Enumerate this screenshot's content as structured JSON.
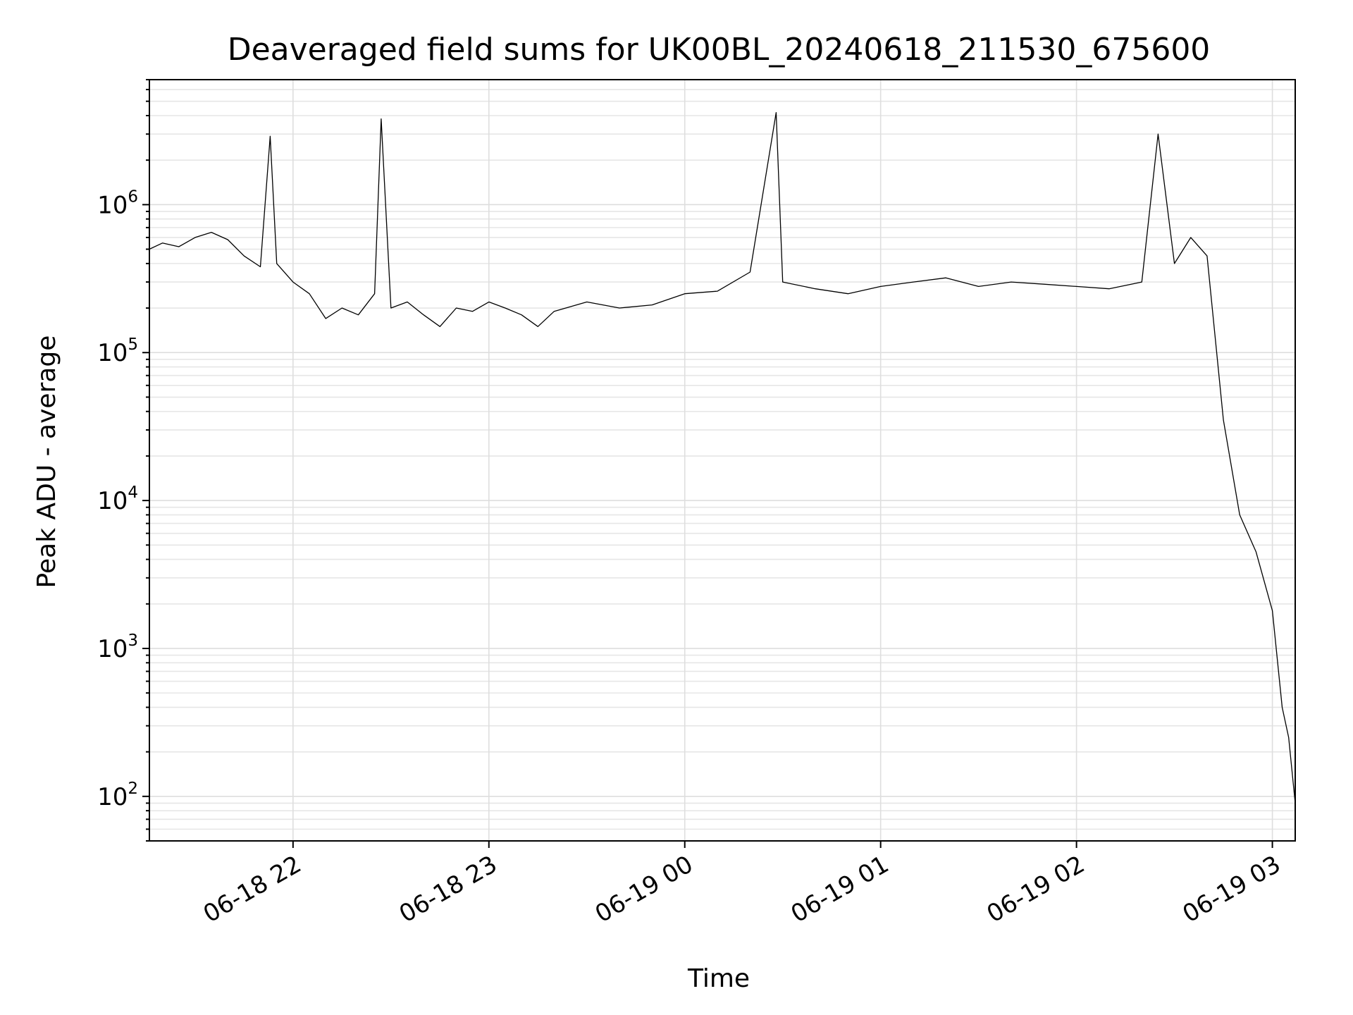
{
  "chart_data": {
    "type": "line",
    "title": "Deaveraged field sums for UK00BL_20240618_211530_675600",
    "xlabel": "Time",
    "ylabel": "Peak ADU - average",
    "yscale": "log",
    "grid": true,
    "xlim": [
      "2024-06-18 21:16",
      "2024-06-19 03:07"
    ],
    "ylim": [
      50,
      7000000
    ],
    "x_ticks": [
      {
        "at": "2024-06-18 22:00",
        "label": "06-18 22"
      },
      {
        "at": "2024-06-18 23:00",
        "label": "06-18 23"
      },
      {
        "at": "2024-06-19 00:00",
        "label": "06-19 00"
      },
      {
        "at": "2024-06-19 01:00",
        "label": "06-19 01"
      },
      {
        "at": "2024-06-19 02:00",
        "label": "06-19 02"
      },
      {
        "at": "2024-06-19 03:00",
        "label": "06-19 03"
      }
    ],
    "y_ticks": [
      {
        "value": 100,
        "base": "10",
        "exp": "2"
      },
      {
        "value": 1000,
        "base": "10",
        "exp": "3"
      },
      {
        "value": 10000,
        "base": "10",
        "exp": "4"
      },
      {
        "value": 100000,
        "base": "10",
        "exp": "5"
      },
      {
        "value": 1000000,
        "base": "10",
        "exp": "6"
      }
    ],
    "line_color": "#000000",
    "series": [
      {
        "x": [
          "2024-06-18 21:16",
          "2024-06-18 21:20",
          "2024-06-18 21:25",
          "2024-06-18 21:30",
          "2024-06-18 21:35",
          "2024-06-18 21:40",
          "2024-06-18 21:45",
          "2024-06-18 21:50",
          "2024-06-18 21:53",
          "2024-06-18 21:55",
          "2024-06-18 22:00",
          "2024-06-18 22:05",
          "2024-06-18 22:10",
          "2024-06-18 22:15",
          "2024-06-18 22:20",
          "2024-06-18 22:25",
          "2024-06-18 22:27",
          "2024-06-18 22:30",
          "2024-06-18 22:35",
          "2024-06-18 22:40",
          "2024-06-18 22:45",
          "2024-06-18 22:50",
          "2024-06-18 22:55",
          "2024-06-18 23:00",
          "2024-06-18 23:05",
          "2024-06-18 23:10",
          "2024-06-18 23:15",
          "2024-06-18 23:20",
          "2024-06-18 23:30",
          "2024-06-18 23:40",
          "2024-06-18 23:50",
          "2024-06-19 00:00",
          "2024-06-19 00:10",
          "2024-06-19 00:20",
          "2024-06-19 00:28",
          "2024-06-19 00:30",
          "2024-06-19 00:40",
          "2024-06-19 00:50",
          "2024-06-19 01:00",
          "2024-06-19 01:10",
          "2024-06-19 01:20",
          "2024-06-19 01:30",
          "2024-06-19 01:40",
          "2024-06-19 01:50",
          "2024-06-19 02:00",
          "2024-06-19 02:10",
          "2024-06-19 02:20",
          "2024-06-19 02:25",
          "2024-06-19 02:30",
          "2024-06-19 02:35",
          "2024-06-19 02:40",
          "2024-06-19 02:45",
          "2024-06-19 02:50",
          "2024-06-19 02:55",
          "2024-06-19 03:00",
          "2024-06-19 03:03",
          "2024-06-19 03:05",
          "2024-06-19 03:07"
        ],
        "y": [
          500000,
          550000,
          520000,
          600000,
          650000,
          580000,
          450000,
          380000,
          2900000,
          400000,
          300000,
          250000,
          170000,
          200000,
          180000,
          250000,
          3800000,
          200000,
          220000,
          180000,
          150000,
          200000,
          190000,
          220000,
          200000,
          180000,
          150000,
          190000,
          220000,
          200000,
          210000,
          250000,
          260000,
          350000,
          4200000,
          300000,
          270000,
          250000,
          280000,
          300000,
          320000,
          280000,
          300000,
          290000,
          280000,
          270000,
          300000,
          3000000,
          400000,
          600000,
          450000,
          35000,
          8000,
          4500,
          1800,
          400,
          250,
          90
        ]
      }
    ]
  }
}
